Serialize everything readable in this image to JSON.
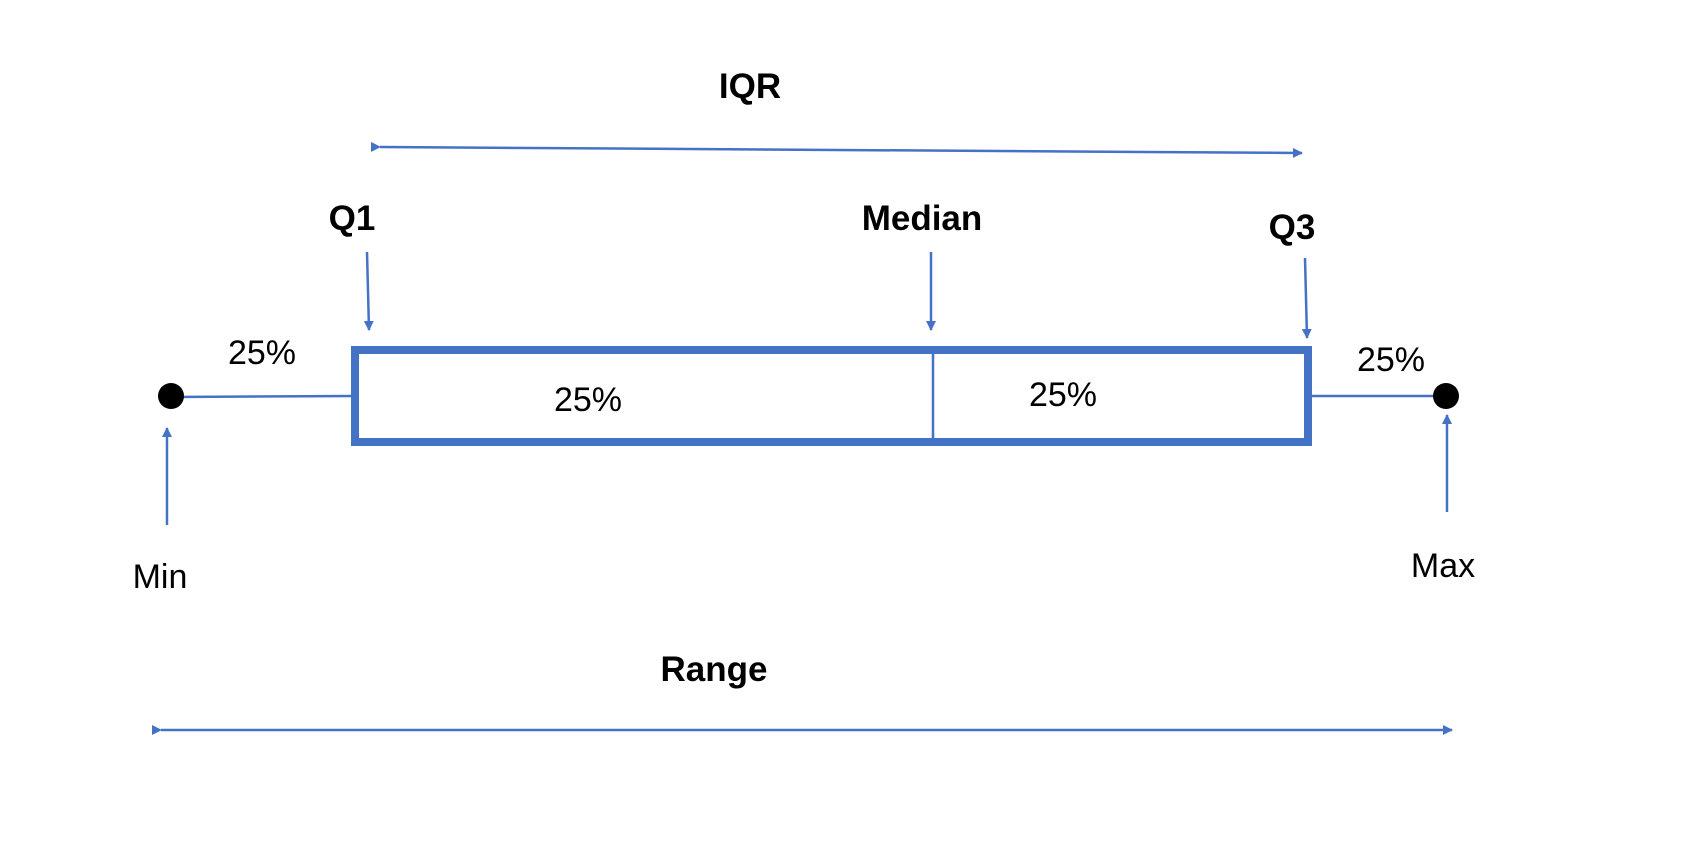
{
  "labels": {
    "iqr": "IQR",
    "q1": "Q1",
    "median": "Median",
    "q3": "Q3",
    "min": "Min",
    "max": "Max",
    "range": "Range",
    "pct_left_whisker": "25%",
    "pct_box_left": "25%",
    "pct_box_right": "25%",
    "pct_right_whisker": "25%"
  },
  "colors": {
    "accent": "#4472C4",
    "text": "#000000",
    "dot": "#000000",
    "background": "#FFFFFF"
  }
}
